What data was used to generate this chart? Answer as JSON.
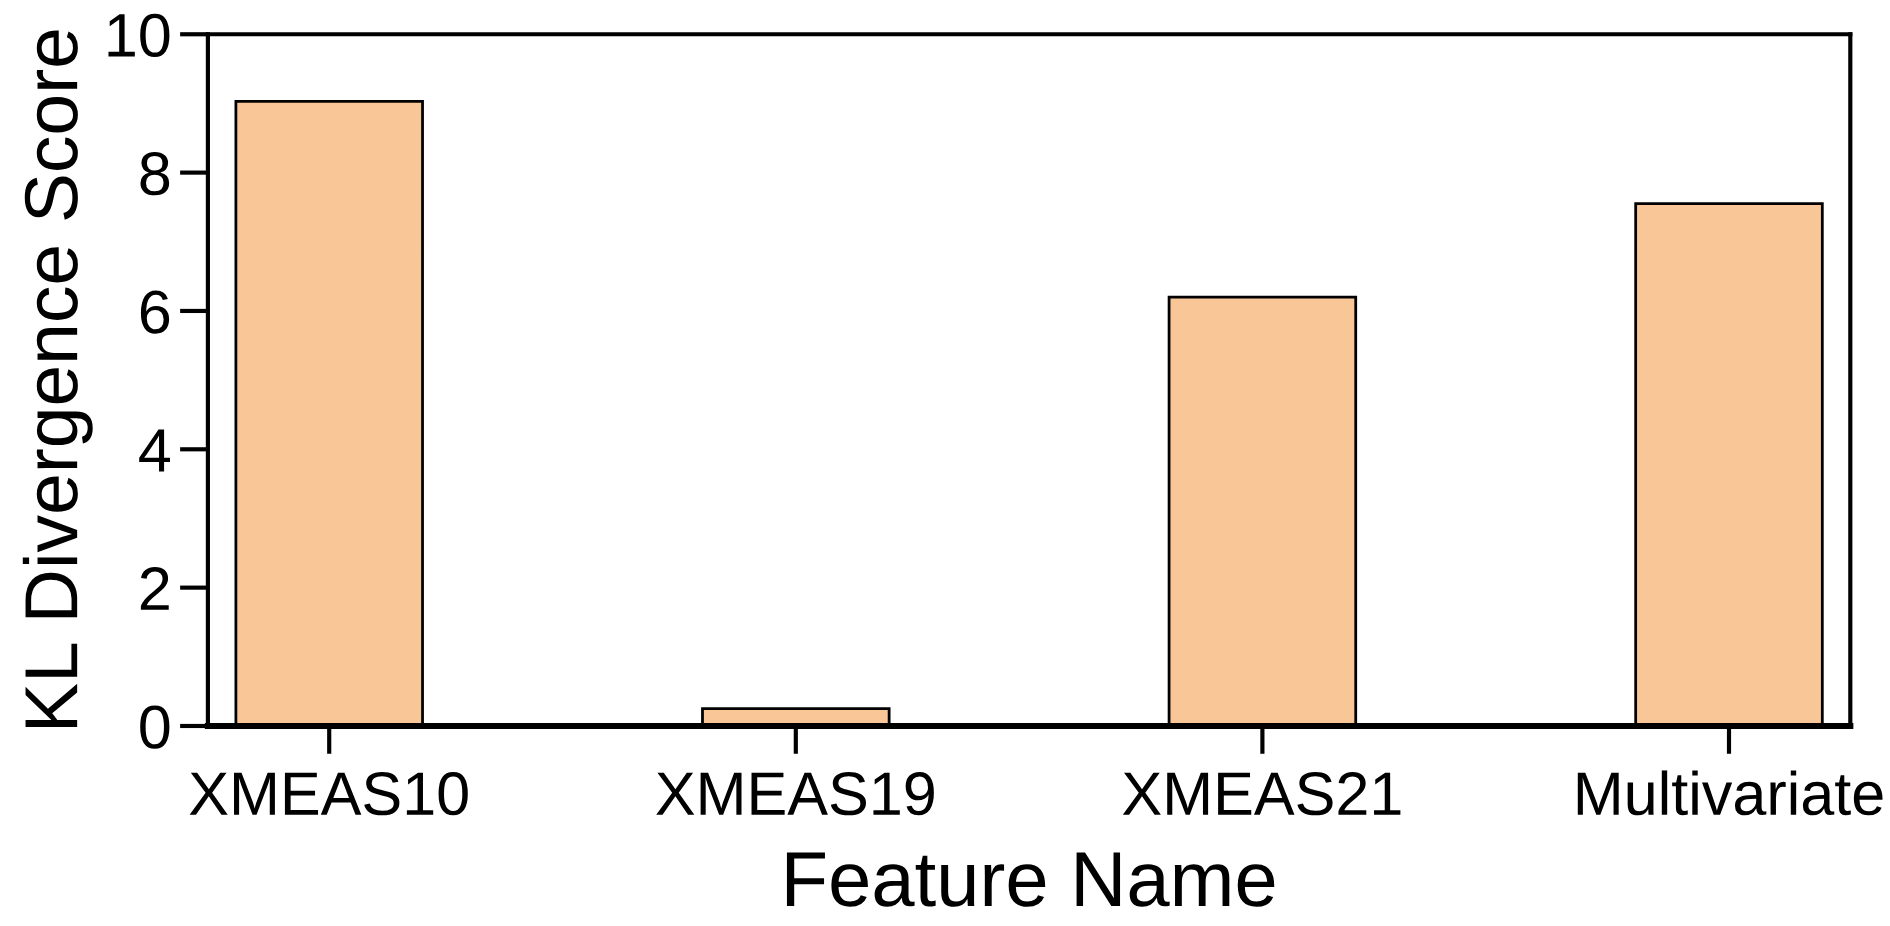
{
  "chart_data": {
    "type": "bar",
    "xlabel": "Feature Name",
    "ylabel": "KL Divergence Score",
    "categories": [
      "XMEAS10",
      "XMEAS19",
      "XMEAS21",
      "Multivariate"
    ],
    "values": [
      9.03,
      0.25,
      6.2,
      7.55
    ],
    "color": "#f9c797",
    "ylim": [
      0,
      10
    ],
    "yticks": [
      0,
      2,
      4,
      6,
      8,
      10
    ]
  }
}
